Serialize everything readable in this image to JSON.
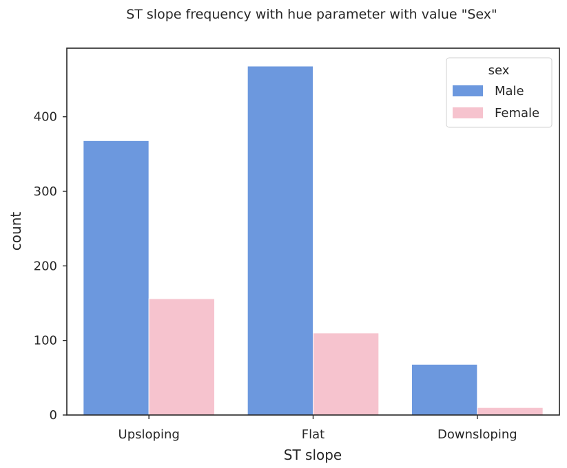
{
  "chart_data": {
    "type": "bar",
    "title": "ST slope frequency with hue parameter with value \"Sex\"",
    "xlabel": "ST slope",
    "ylabel": "count",
    "categories": [
      "Upsloping",
      "Flat",
      "Downsloping"
    ],
    "series": [
      {
        "name": "Male",
        "values": [
          368,
          468,
          68
        ],
        "color": "#6c98de"
      },
      {
        "name": "Female",
        "values": [
          156,
          110,
          10
        ],
        "color": "#f6c3ce"
      }
    ],
    "ylim": [
      0,
      492
    ],
    "yticks": [
      0,
      100,
      200,
      300,
      400
    ],
    "legend": {
      "title": "sex",
      "position": "top-right"
    },
    "grid": false
  }
}
